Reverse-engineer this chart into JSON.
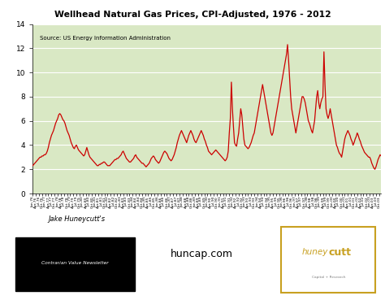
{
  "title": "Wellhead Natural Gas Prices, CPI-Adjusted, 1976 - 2012",
  "source_text": "Source: US Energy Information Administration",
  "line_color": "#cc0000",
  "plot_bg": "#d9e8c4",
  "fig_bg": "#ffffff",
  "ylim": [
    0,
    14
  ],
  "yticks": [
    0,
    2,
    4,
    6,
    8,
    10,
    12,
    14
  ],
  "prices": [
    2.3,
    2.4,
    2.5,
    2.6,
    2.7,
    2.8,
    2.9,
    3.0,
    3.0,
    3.1,
    3.1,
    3.2,
    3.2,
    3.3,
    3.5,
    3.8,
    4.2,
    4.5,
    4.8,
    5.0,
    5.2,
    5.5,
    5.8,
    6.0,
    6.2,
    6.5,
    6.6,
    6.5,
    6.3,
    6.1,
    6.0,
    5.8,
    5.5,
    5.2,
    5.0,
    4.8,
    4.5,
    4.2,
    4.0,
    3.8,
    3.7,
    3.9,
    4.0,
    3.8,
    3.6,
    3.5,
    3.4,
    3.3,
    3.2,
    3.1,
    3.2,
    3.5,
    3.8,
    3.5,
    3.2,
    3.0,
    2.9,
    2.8,
    2.7,
    2.6,
    2.5,
    2.4,
    2.3,
    2.3,
    2.4,
    2.4,
    2.5,
    2.5,
    2.6,
    2.6,
    2.5,
    2.4,
    2.3,
    2.3,
    2.3,
    2.4,
    2.5,
    2.6,
    2.7,
    2.8,
    2.8,
    2.9,
    2.9,
    3.0,
    3.1,
    3.2,
    3.4,
    3.5,
    3.3,
    3.1,
    2.9,
    2.8,
    2.7,
    2.6,
    2.6,
    2.7,
    2.8,
    2.9,
    3.1,
    3.2,
    3.0,
    2.9,
    2.8,
    2.7,
    2.6,
    2.5,
    2.5,
    2.4,
    2.3,
    2.2,
    2.3,
    2.4,
    2.5,
    2.7,
    2.9,
    3.0,
    3.1,
    3.0,
    2.8,
    2.7,
    2.6,
    2.5,
    2.6,
    2.8,
    3.0,
    3.2,
    3.4,
    3.5,
    3.4,
    3.3,
    3.1,
    2.9,
    2.8,
    2.7,
    2.8,
    3.0,
    3.2,
    3.5,
    3.8,
    4.2,
    4.5,
    4.8,
    5.0,
    5.2,
    5.0,
    4.8,
    4.6,
    4.4,
    4.2,
    4.5,
    4.8,
    5.0,
    5.2,
    5.0,
    4.8,
    4.5,
    4.3,
    4.2,
    4.4,
    4.6,
    4.8,
    5.0,
    5.2,
    5.0,
    4.8,
    4.5,
    4.3,
    4.0,
    3.8,
    3.5,
    3.4,
    3.3,
    3.2,
    3.3,
    3.4,
    3.5,
    3.6,
    3.5,
    3.4,
    3.3,
    3.2,
    3.1,
    3.0,
    2.9,
    2.8,
    2.7,
    2.8,
    3.0,
    3.5,
    5.0,
    6.2,
    9.2,
    7.0,
    5.5,
    4.2,
    4.0,
    3.9,
    4.5,
    5.0,
    6.0,
    7.0,
    6.5,
    5.5,
    4.5,
    4.0,
    3.9,
    3.8,
    3.7,
    3.8,
    4.0,
    4.2,
    4.5,
    4.8,
    5.0,
    5.5,
    6.0,
    6.5,
    7.0,
    7.5,
    8.0,
    8.5,
    9.0,
    8.5,
    8.0,
    7.5,
    7.0,
    6.5,
    6.0,
    5.5,
    5.0,
    4.8,
    5.0,
    5.5,
    6.0,
    6.5,
    7.0,
    7.5,
    8.0,
    8.5,
    9.0,
    9.5,
    10.0,
    10.5,
    11.0,
    11.5,
    12.3,
    11.0,
    9.5,
    8.0,
    7.0,
    6.5,
    6.0,
    5.5,
    5.0,
    5.5,
    6.0,
    6.5,
    7.0,
    7.5,
    8.0,
    8.0,
    7.8,
    7.5,
    7.0,
    6.5,
    6.0,
    5.8,
    5.5,
    5.2,
    5.0,
    5.5,
    6.0,
    7.0,
    8.0,
    8.5,
    7.5,
    7.0,
    7.5,
    7.8,
    8.0,
    11.7,
    9.0,
    7.0,
    6.5,
    6.2,
    6.5,
    7.0,
    6.5,
    6.0,
    5.5,
    5.0,
    4.5,
    4.0,
    3.8,
    3.5,
    3.3,
    3.2,
    3.0,
    3.5,
    4.0,
    4.5,
    4.8,
    5.0,
    5.2,
    5.0,
    4.8,
    4.5,
    4.3,
    4.0,
    4.2,
    4.5,
    4.7,
    5.0,
    4.8,
    4.5,
    4.3,
    4.0,
    3.8,
    3.6,
    3.4,
    3.3,
    3.2,
    3.1,
    3.0,
    3.0,
    2.8,
    2.5,
    2.3,
    2.1,
    2.0,
    2.2,
    2.5,
    2.8,
    3.0,
    3.2,
    3.1
  ]
}
